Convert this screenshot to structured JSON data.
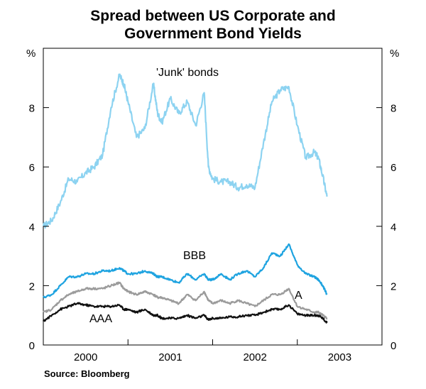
{
  "title_line1": "Spread between US Corporate and",
  "title_line2": "Government Bond Yields",
  "source": "Source: Bloomberg",
  "chart_data": {
    "type": "line",
    "title": "Spread between US Corporate and Government Bond Yields",
    "ylabel_left": "%",
    "ylabel_right": "%",
    "ylim": [
      0,
      10
    ],
    "yticks": [
      0,
      2,
      4,
      6,
      8
    ],
    "xlim": [
      1999.5,
      2003.5
    ],
    "xtick_labels": [
      "2000",
      "2001",
      "2002",
      "2003"
    ],
    "xtick_positions": [
      2000.0,
      2001.0,
      2002.0,
      2003.0
    ],
    "x": [
      1999.5,
      1999.6,
      1999.7,
      1999.8,
      1999.9,
      2000.0,
      2000.1,
      2000.2,
      2000.3,
      2000.4,
      2000.45,
      2000.5,
      2000.6,
      2000.7,
      2000.8,
      2000.85,
      2000.9,
      2001.0,
      2001.1,
      2001.2,
      2001.3,
      2001.4,
      2001.45,
      2001.5,
      2001.6,
      2001.7,
      2001.8,
      2001.9,
      2002.0,
      2002.1,
      2002.2,
      2002.3,
      2002.4,
      2002.5,
      2002.6,
      2002.7,
      2002.75,
      2002.8,
      2002.85
    ],
    "series": [
      {
        "name": "'Junk' bonds",
        "color": "#8dd3f1",
        "values": [
          4.0,
          4.2,
          4.8,
          5.6,
          5.5,
          5.8,
          6.0,
          6.4,
          8.0,
          9.1,
          8.8,
          8.2,
          7.0,
          7.3,
          8.8,
          7.8,
          7.5,
          8.3,
          7.8,
          8.2,
          7.4,
          8.5,
          6.0,
          5.6,
          5.5,
          5.5,
          5.3,
          5.4,
          5.3,
          6.8,
          8.2,
          8.6,
          8.7,
          7.4,
          6.3,
          6.5,
          6.3,
          5.7,
          5.0
        ]
      },
      {
        "name": "BBB",
        "color": "#1ea3e0",
        "values": [
          1.6,
          1.7,
          2.0,
          2.3,
          2.3,
          2.4,
          2.4,
          2.5,
          2.5,
          2.6,
          2.5,
          2.4,
          2.4,
          2.5,
          2.4,
          2.3,
          2.3,
          2.2,
          2.1,
          2.4,
          2.2,
          2.4,
          2.2,
          2.2,
          2.4,
          2.2,
          2.4,
          2.5,
          2.3,
          2.6,
          3.1,
          3.0,
          3.4,
          2.7,
          2.4,
          2.3,
          2.2,
          2.0,
          1.7
        ]
      },
      {
        "name": "A",
        "color": "#9b9b9b",
        "values": [
          1.1,
          1.2,
          1.5,
          1.7,
          1.8,
          1.9,
          1.9,
          1.9,
          2.0,
          2.1,
          1.9,
          1.8,
          1.7,
          1.8,
          1.7,
          1.6,
          1.6,
          1.5,
          1.4,
          1.7,
          1.5,
          1.8,
          1.5,
          1.4,
          1.5,
          1.4,
          1.5,
          1.4,
          1.3,
          1.5,
          1.7,
          1.7,
          1.9,
          1.3,
          1.2,
          1.1,
          1.1,
          1.0,
          0.9
        ]
      },
      {
        "name": "AAA",
        "color": "#111111",
        "values": [
          0.8,
          1.0,
          1.2,
          1.3,
          1.4,
          1.35,
          1.3,
          1.3,
          1.3,
          1.35,
          1.2,
          1.2,
          1.1,
          1.2,
          1.0,
          1.0,
          0.9,
          0.9,
          0.9,
          1.0,
          0.9,
          1.0,
          0.85,
          0.9,
          0.9,
          0.95,
          0.95,
          1.0,
          1.0,
          1.1,
          1.2,
          1.2,
          1.35,
          1.05,
          1.0,
          1.0,
          1.0,
          0.9,
          0.75
        ]
      }
    ],
    "annotations": [
      "'Junk' bonds",
      "BBB",
      "A",
      "AAA"
    ]
  }
}
